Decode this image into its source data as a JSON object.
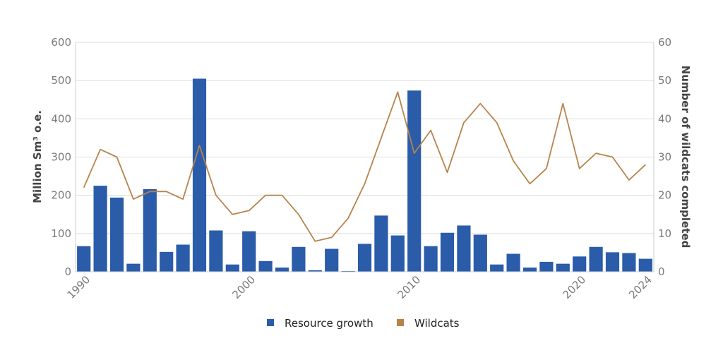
{
  "chart_data": {
    "type": "bar",
    "x": [
      1990,
      1991,
      1992,
      1993,
      1994,
      1995,
      1996,
      1997,
      1998,
      1999,
      2000,
      2001,
      2002,
      2003,
      2004,
      2005,
      2006,
      2007,
      2008,
      2009,
      2010,
      2011,
      2012,
      2013,
      2014,
      2015,
      2016,
      2017,
      2018,
      2019,
      2020,
      2021,
      2022,
      2023,
      2024
    ],
    "x_ticks": [
      "1990",
      "2000",
      "2010",
      "2020",
      "2024"
    ],
    "series": [
      {
        "name": "Resource growth",
        "type": "bar",
        "axis": "left",
        "color": "#2a5caa",
        "values": [
          67,
          225,
          194,
          21,
          216,
          52,
          71,
          505,
          108,
          19,
          106,
          28,
          11,
          65,
          4,
          60,
          2,
          73,
          147,
          95,
          474,
          67,
          102,
          121,
          97,
          19,
          47,
          11,
          26,
          21,
          40,
          65,
          51,
          49,
          34
        ]
      },
      {
        "name": "Wildcats",
        "type": "line",
        "axis": "right",
        "color": "#b8834a",
        "values": [
          22,
          32,
          30,
          19,
          21,
          21,
          19,
          33,
          20,
          15,
          16,
          20,
          20,
          15,
          8,
          9,
          14,
          23,
          35,
          47,
          31,
          37,
          26,
          39,
          44,
          39,
          29,
          23,
          27,
          44,
          27,
          31,
          30,
          24,
          28
        ]
      }
    ],
    "ylabel": "Million Sm³ o.e.",
    "ylim": [
      0,
      600
    ],
    "y_ticks": [
      "0",
      "100",
      "200",
      "300",
      "400",
      "500",
      "600"
    ],
    "y2label": "Number of wildcats completed",
    "y2lim": [
      0,
      60
    ],
    "y2_ticks": [
      "0",
      "10",
      "20",
      "30",
      "40",
      "50",
      "60"
    ],
    "grid": true,
    "legend_position": "bottom-center"
  }
}
